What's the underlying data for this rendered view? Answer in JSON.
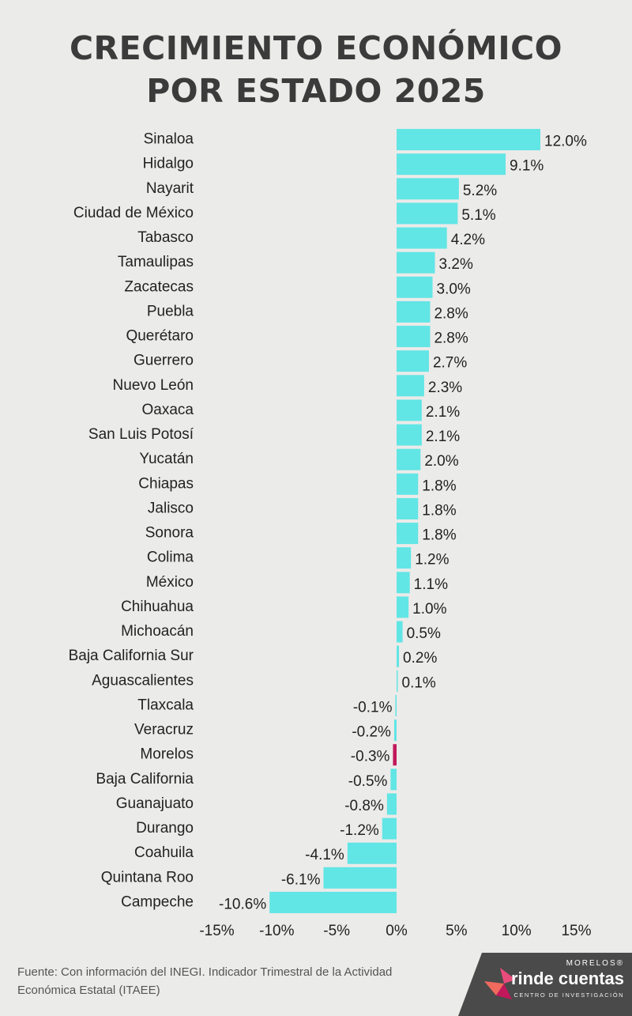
{
  "chart_data": {
    "type": "barh",
    "title": "CRECIMIENTO ECONÓMICO POR ESTADO 2025",
    "categories": [
      "Sinaloa",
      "Hidalgo",
      "Nayarit",
      "Ciudad de México",
      "Tabasco",
      "Tamaulipas",
      "Zacatecas",
      "Puebla",
      "Querétaro",
      "Guerrero",
      "Nuevo León",
      "Oaxaca",
      "San Luis Potosí",
      "Yucatán",
      "Chiapas",
      "Jalisco",
      "Sonora",
      "Colima",
      "México",
      "Chihuahua",
      "Michoacán",
      "Baja California Sur",
      "Aguascalientes",
      "Tlaxcala",
      "Veracruz",
      "Morelos",
      "Baja California",
      "Guanajuato",
      "Durango",
      "Coahuila",
      "Quintana Roo",
      "Campeche"
    ],
    "values": [
      12.0,
      9.1,
      5.2,
      5.1,
      4.2,
      3.2,
      3.0,
      2.8,
      2.8,
      2.7,
      2.3,
      2.1,
      2.1,
      2.0,
      1.8,
      1.8,
      1.8,
      1.2,
      1.1,
      1.0,
      0.5,
      0.2,
      0.1,
      -0.1,
      -0.2,
      -0.3,
      -0.5,
      -0.8,
      -1.2,
      -4.1,
      -6.1,
      -10.6
    ],
    "value_labels": [
      "12.0%",
      "9.1%",
      "5.2%",
      "5.1%",
      "4.2%",
      "3.2%",
      "3.0%",
      "2.8%",
      "2.8%",
      "2.7%",
      "2.3%",
      "2.1%",
      "2.1%",
      "2.0%",
      "1.8%",
      "1.8%",
      "1.8%",
      "1.2%",
      "1.1%",
      "1.0%",
      "0.5%",
      "0.2%",
      "0.1%",
      "-0.1%",
      "-0.2%",
      "-0.3%",
      "-0.5%",
      "-0.8%",
      "-1.2%",
      "-4.1%",
      "-6.1%",
      "-10.6%"
    ],
    "colors": [
      "#62e5e5",
      "#62e5e5",
      "#62e5e5",
      "#62e5e5",
      "#62e5e5",
      "#62e5e5",
      "#62e5e5",
      "#62e5e5",
      "#62e5e5",
      "#62e5e5",
      "#62e5e5",
      "#62e5e5",
      "#62e5e5",
      "#62e5e5",
      "#62e5e5",
      "#62e5e5",
      "#62e5e5",
      "#62e5e5",
      "#62e5e5",
      "#62e5e5",
      "#62e5e5",
      "#62e5e5",
      "#62e5e5",
      "#62e5e5",
      "#62e5e5",
      "#c2185b",
      "#62e5e5",
      "#62e5e5",
      "#62e5e5",
      "#62e5e5",
      "#62e5e5",
      "#62e5e5"
    ],
    "xlim": [
      -15,
      15
    ],
    "xticks": [
      {
        "value": -15,
        "label": "-15%"
      },
      {
        "value": -10,
        "label": "-10%"
      },
      {
        "value": -5,
        "label": "-5%"
      },
      {
        "value": 0,
        "label": "0%"
      },
      {
        "value": 5,
        "label": "5%"
      },
      {
        "value": 10,
        "label": "10%"
      },
      {
        "value": 15,
        "label": "15%"
      }
    ],
    "grid": false,
    "source": "Fuente: Con información del INEGI. Indicador Trimestral de la Actividad Económica Estatal (ITAEE)"
  },
  "logo": {
    "top": "MORELOS®",
    "name": "rinde cuentas",
    "sub": "CENTRO DE INVESTIGACIÓN"
  }
}
